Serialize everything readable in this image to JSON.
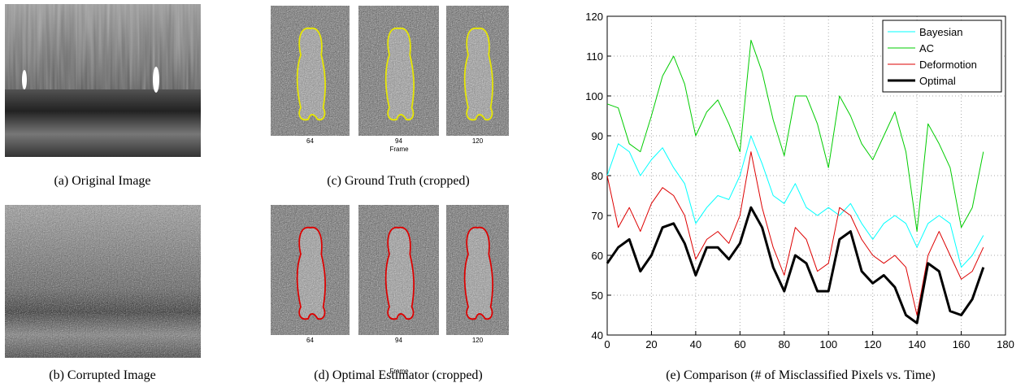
{
  "panels": {
    "a": {
      "caption": "(a) Original Image"
    },
    "b": {
      "caption": "(b) Corrupted Image"
    },
    "c": {
      "caption": "(c) Ground Truth (cropped)",
      "frames": [
        "64",
        "94",
        "120"
      ],
      "axis_label": "Frame"
    },
    "d": {
      "caption": "(d) Optimal Estimator (cropped)",
      "frames": [
        "64",
        "94",
        "120"
      ],
      "axis_label": "Frame"
    },
    "e": {
      "caption": "(e) Comparison (# of Misclassified Pixels vs. Time)"
    }
  },
  "chart_data": {
    "type": "line",
    "x": [
      0,
      5,
      10,
      15,
      20,
      25,
      30,
      35,
      40,
      45,
      50,
      55,
      60,
      65,
      70,
      75,
      80,
      85,
      90,
      95,
      100,
      105,
      110,
      115,
      120,
      125,
      130,
      135,
      140,
      145,
      150,
      155,
      160,
      165,
      170
    ],
    "series": [
      {
        "name": "Bayesian",
        "color": "#00ffff",
        "width": 1,
        "values": [
          80,
          88,
          86,
          80,
          84,
          87,
          82,
          78,
          68,
          72,
          75,
          74,
          80,
          90,
          83,
          75,
          73,
          78,
          72,
          70,
          72,
          70,
          73,
          68,
          64,
          68,
          70,
          68,
          62,
          68,
          70,
          68,
          57,
          60,
          65
        ]
      },
      {
        "name": "AC",
        "color": "#00cc00",
        "width": 1,
        "values": [
          98,
          97,
          88,
          86,
          95,
          105,
          110,
          103,
          90,
          96,
          99,
          93,
          86,
          114,
          106,
          94,
          85,
          100,
          100,
          93,
          82,
          100,
          95,
          88,
          84,
          90,
          96,
          86,
          66,
          93,
          88,
          82,
          67,
          72,
          86
        ]
      },
      {
        "name": "Deformotion",
        "color": "#dd0000",
        "width": 1,
        "values": [
          80,
          67,
          72,
          66,
          73,
          77,
          75,
          70,
          59,
          64,
          66,
          63,
          70,
          86,
          72,
          62,
          55,
          67,
          64,
          56,
          58,
          72,
          70,
          64,
          60,
          58,
          60,
          57,
          45,
          60,
          66,
          60,
          54,
          56,
          62
        ]
      },
      {
        "name": "Optimal",
        "color": "#000000",
        "width": 3,
        "values": [
          58,
          62,
          64,
          56,
          60,
          67,
          68,
          63,
          55,
          62,
          62,
          59,
          63,
          72,
          67,
          57,
          51,
          60,
          58,
          51,
          51,
          64,
          66,
          56,
          53,
          55,
          52,
          45,
          43,
          58,
          56,
          46,
          45,
          49,
          57
        ]
      }
    ],
    "xlim": [
      0,
      180
    ],
    "xticks": [
      0,
      20,
      40,
      60,
      80,
      100,
      120,
      140,
      160,
      180
    ],
    "ylim": [
      40,
      120
    ],
    "yticks": [
      40,
      50,
      60,
      70,
      80,
      90,
      100,
      110,
      120
    ],
    "grid": true,
    "legend": "top-right"
  }
}
